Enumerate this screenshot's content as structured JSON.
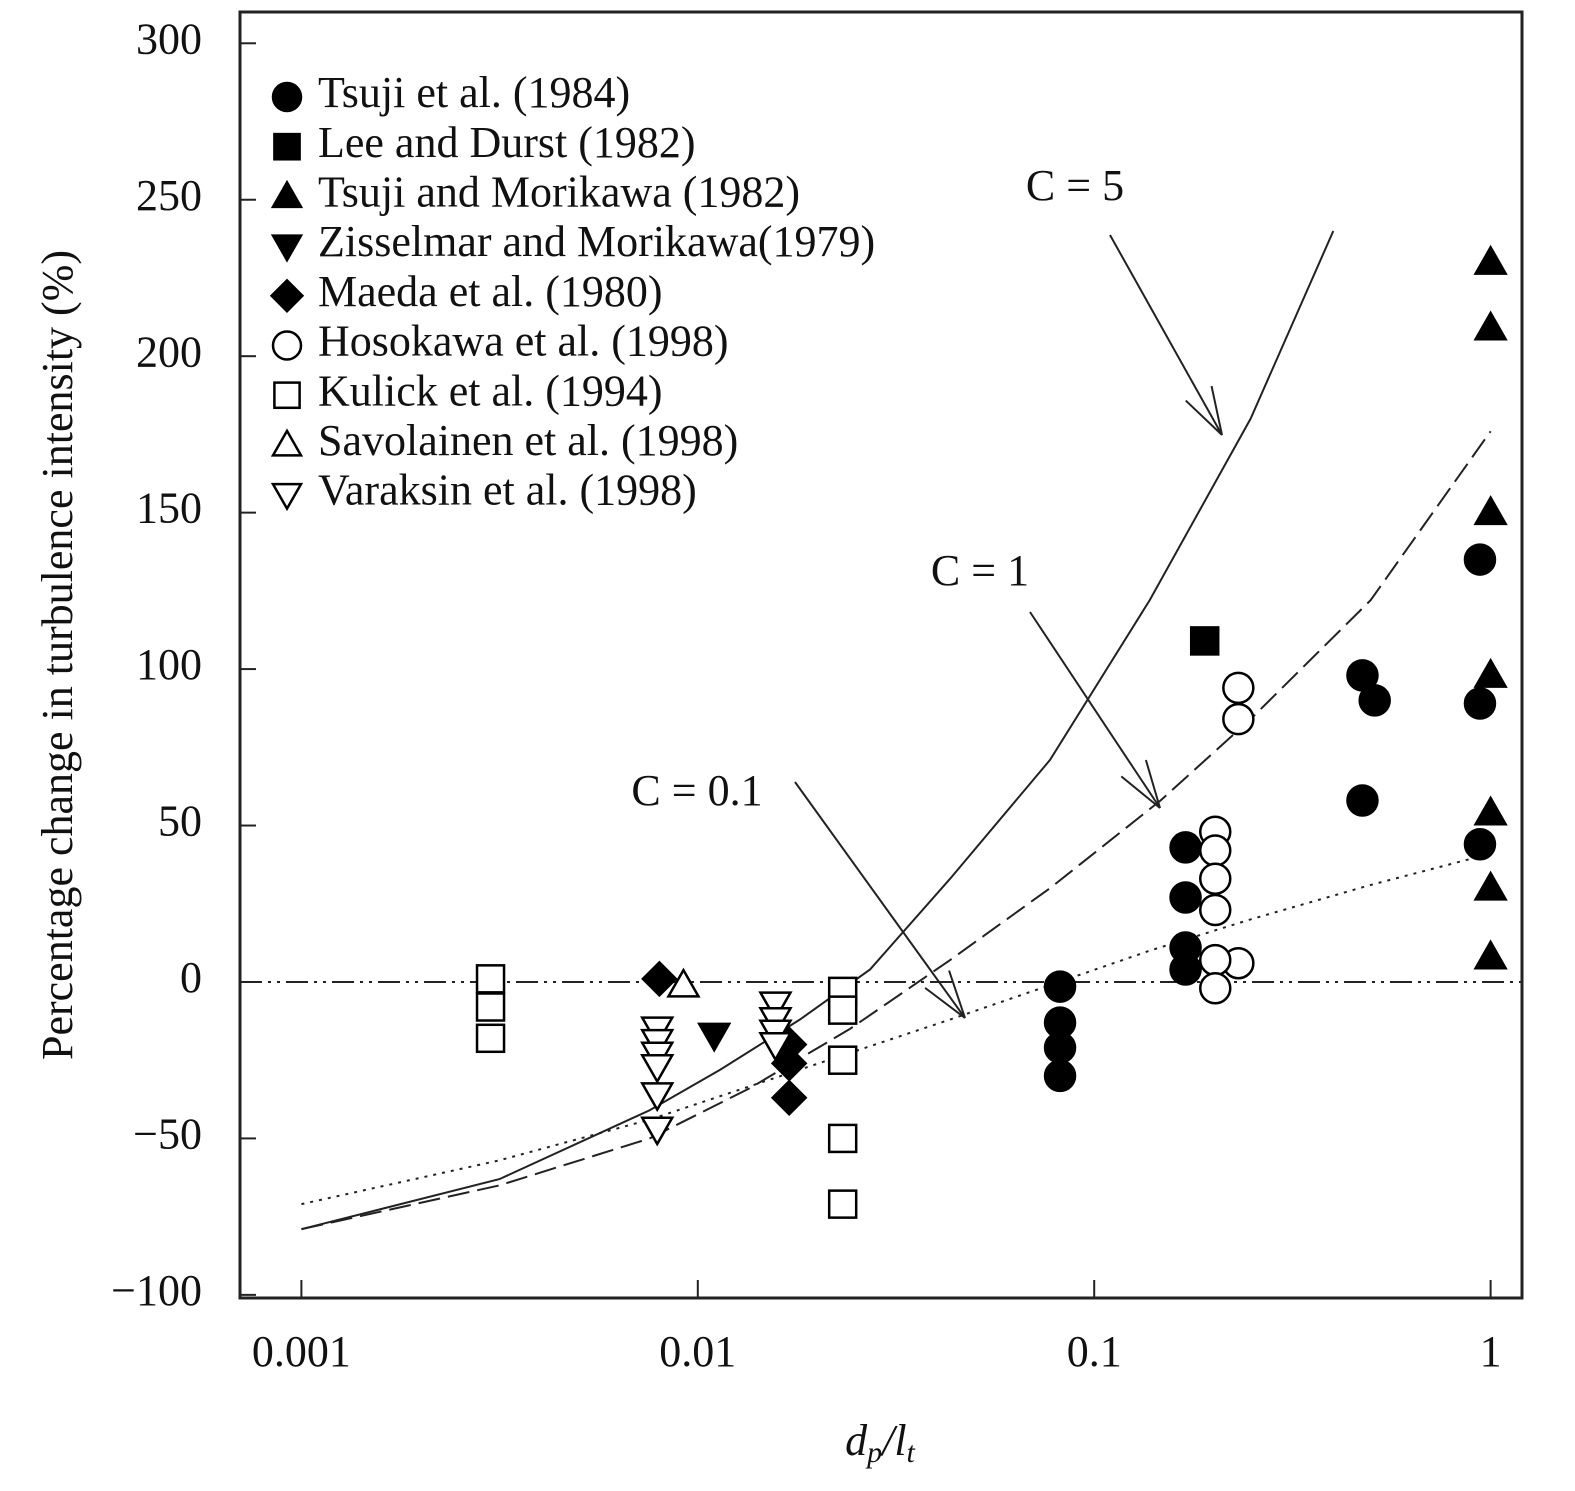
{
  "chart_data": {
    "type": "scatter",
    "ylabel": "Percentage change in turbulence intensity (%)",
    "xlabel_parts": [
      "d",
      "p",
      "/l",
      "t"
    ],
    "xscale": "log",
    "xlim": [
      0.0007,
      1.2
    ],
    "ylim": [
      -101,
      310
    ],
    "xticks": [
      0.001,
      0.01,
      0.1,
      1
    ],
    "yticks": [
      {
        "value": -100,
        "label": "−100"
      },
      {
        "value": -50,
        "label": "−50"
      },
      0,
      50,
      100,
      150,
      200,
      250,
      300
    ],
    "legend": "upper left",
    "reference_line": 0,
    "series": [
      {
        "name": "Tsuji et al. (1984)",
        "marker": "circle",
        "filled": true,
        "x": [
          0.082,
          0.082,
          0.082,
          0.082,
          0.17,
          0.17,
          0.17,
          0.17,
          0.475,
          0.51,
          0.475,
          0.94,
          0.94,
          0.94
        ],
        "y": [
          -1.5,
          -13,
          -21,
          -30,
          43,
          27,
          11,
          4,
          98,
          90,
          58,
          135,
          89,
          44
        ]
      },
      {
        "name": "Lee and Durst (1982)",
        "marker": "square",
        "filled": true,
        "x": [
          0.19
        ],
        "y": [
          109
        ]
      },
      {
        "name": "Tsuji and Morikawa (1982)",
        "marker": "triangle-up",
        "filled": true,
        "x": [
          1.0,
          1.0,
          1.0,
          1.0,
          1.0,
          1.0,
          1.0
        ],
        "y": [
          230,
          209,
          150,
          98,
          54,
          30,
          8
        ]
      },
      {
        "name": "Zisselmar and Morikawa(1979)",
        "marker": "triangle-down",
        "filled": true,
        "x": [
          0.011
        ],
        "y": [
          -17
        ]
      },
      {
        "name": "Maeda et al. (1980)",
        "marker": "diamond",
        "filled": true,
        "x": [
          0.008,
          0.017,
          0.017,
          0.017
        ],
        "y": [
          1,
          -20,
          -26,
          -37
        ]
      },
      {
        "name": "Hosokawa et al. (1998)",
        "marker": "circle",
        "filled": false,
        "x": [
          0.231,
          0.231,
          0.231,
          0.202,
          0.202,
          0.202,
          0.202,
          0.202,
          0.202
        ],
        "y": [
          94,
          84,
          6,
          48,
          42,
          33,
          23,
          7,
          -2
        ]
      },
      {
        "name": "Kulick et al. (1994)",
        "marker": "square",
        "filled": false,
        "x": [
          0.003,
          0.003,
          0.003,
          0.0232,
          0.0232,
          0.0232,
          0.0232,
          0.0232
        ],
        "y": [
          1,
          -8,
          -18,
          -3,
          -9,
          -25,
          -50,
          -71
        ]
      },
      {
        "name": "Savolainen et al. (1998)",
        "marker": "triangle-up",
        "filled": false,
        "x": [
          0.0092
        ],
        "y": [
          -1
        ]
      },
      {
        "name": "Varaksin et al. (1998)",
        "marker": "triangle-down",
        "filled": false,
        "x": [
          0.0079,
          0.0079,
          0.0079,
          0.0079,
          0.0079,
          0.0079,
          0.0157,
          0.0157,
          0.0157,
          0.0157
        ],
        "y": [
          -15,
          -19,
          -23,
          -27,
          -36,
          -47,
          -7,
          -12,
          -16,
          -20
        ]
      }
    ],
    "curves": [
      {
        "label": "C = 5",
        "style": "solid",
        "x": [
          0.001,
          0.00316,
          0.00756,
          0.0114,
          0.0181,
          0.0272,
          0.0433,
          0.0774,
          0.138,
          0.248,
          0.401
        ],
        "y": [
          -79,
          -63,
          -41,
          -28,
          -12,
          4,
          33,
          71,
          122,
          180,
          240
        ]
      },
      {
        "label": "C = 1",
        "style": "dashed",
        "x": [
          0.001,
          0.00316,
          0.00756,
          0.0135,
          0.0242,
          0.0433,
          0.0774,
          0.147,
          0.248,
          0.498,
          1.0
        ],
        "y": [
          -79,
          -65,
          -50,
          -34,
          -15,
          7,
          30,
          58,
          84,
          122,
          176
        ]
      },
      {
        "label": "C = 0.1",
        "style": "dotted",
        "x": [
          0.001,
          0.00316,
          0.00756,
          0.0181,
          0.0433,
          0.0774,
          0.138,
          0.248,
          0.498,
          1.0
        ],
        "y": [
          -71,
          -57,
          -44,
          -28,
          -12,
          -1,
          10,
          20,
          31,
          41
        ]
      }
    ]
  }
}
